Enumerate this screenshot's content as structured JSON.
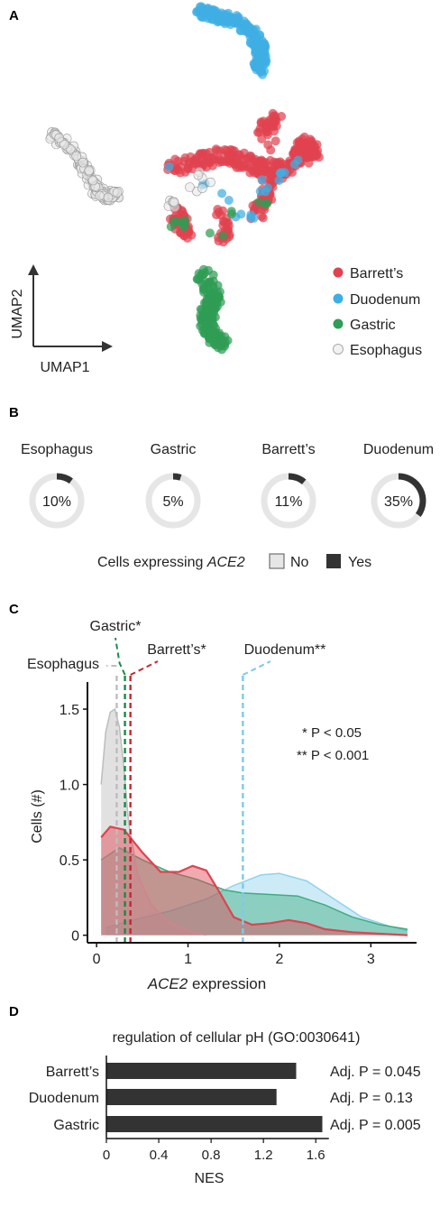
{
  "figure": {
    "panel_a": {
      "letter": "A",
      "x_axis": "UMAP1",
      "y_axis": "UMAP2",
      "legend": [
        {
          "label": "Barrett’s",
          "color": "#e0434f"
        },
        {
          "label": "Duodenum",
          "color": "#3eaee3"
        },
        {
          "label": "Gastric",
          "color": "#2f9d55"
        },
        {
          "label": "Esophagus",
          "color": "#e8e8e8"
        }
      ]
    },
    "panel_b": {
      "letter": "B",
      "caption_prefix": "Cells expressing ",
      "caption_gene": "ACE2",
      "legend_no": "No",
      "legend_yes": "Yes"
    },
    "panel_c": {
      "letter": "C",
      "p_note_1": "* P < 0.05",
      "p_note_2": "** P < 0.001"
    },
    "panel_d": {
      "letter": "D"
    }
  },
  "chart_data": [
    {
      "type": "scatter",
      "panel": "A",
      "xlabel": "UMAP1",
      "ylabel": "UMAP2",
      "series": [
        {
          "name": "Barrett’s",
          "color": "#e0434f"
        },
        {
          "name": "Duodenum",
          "color": "#3eaee3"
        },
        {
          "name": "Gastric",
          "color": "#2f9d55"
        },
        {
          "name": "Esophagus",
          "color": "#e8e8e8"
        }
      ]
    },
    {
      "type": "pie",
      "panel": "B",
      "items": [
        {
          "name": "Esophagus",
          "percent": 10,
          "label": "10%"
        },
        {
          "name": "Gastric",
          "percent": 5,
          "label": "5%"
        },
        {
          "name": "Barrett’s",
          "percent": 11,
          "label": "11%"
        },
        {
          "name": "Duodenum",
          "percent": 35,
          "label": "35%"
        }
      ],
      "colors": {
        "no": "#e6e6e6",
        "yes": "#333333"
      }
    },
    {
      "type": "area",
      "panel": "C",
      "xlabel": "ACE2 expression",
      "ylabel": "Cells (#)",
      "xlim": [
        -0.1,
        3.5
      ],
      "ylim": [
        -0.05,
        1.62
      ],
      "xticks": [
        0,
        1,
        2,
        3
      ],
      "yticks": [
        0,
        0.5,
        1.0,
        1.5
      ],
      "ytick_labels": [
        "0",
        "0.5",
        "1.0",
        "1.5"
      ],
      "series": [
        {
          "name": "Duodenum",
          "color": "#8ed3ee",
          "x": [
            0.1,
            0.4,
            0.8,
            1.2,
            1.5,
            1.8,
            2.0,
            2.3,
            2.6,
            2.9,
            3.2,
            3.4
          ],
          "y": [
            0.05,
            0.1,
            0.16,
            0.24,
            0.33,
            0.4,
            0.41,
            0.36,
            0.24,
            0.12,
            0.06,
            0.03
          ]
        },
        {
          "name": "Gastric",
          "color": "#3fae7e",
          "x": [
            0.05,
            0.25,
            0.5,
            0.8,
            1.1,
            1.4,
            1.6,
            1.9,
            2.2,
            2.5,
            2.8,
            3.1,
            3.4
          ],
          "y": [
            0.5,
            0.58,
            0.5,
            0.42,
            0.37,
            0.3,
            0.28,
            0.27,
            0.26,
            0.2,
            0.12,
            0.07,
            0.04
          ]
        },
        {
          "name": "Esophagus",
          "color": "#bdbdbd",
          "x": [
            0.05,
            0.1,
            0.15,
            0.2,
            0.25,
            0.3,
            0.35,
            0.45,
            0.6,
            0.8,
            1.0,
            1.2
          ],
          "y": [
            1.0,
            1.35,
            1.48,
            1.5,
            1.38,
            1.1,
            0.75,
            0.4,
            0.2,
            0.08,
            0.03,
            0.0
          ]
        },
        {
          "name": "Barrett’s",
          "color": "#e0434f",
          "x": [
            0.05,
            0.15,
            0.3,
            0.5,
            0.7,
            0.9,
            1.05,
            1.2,
            1.35,
            1.5,
            1.7,
            1.9,
            2.1,
            2.3,
            2.5,
            2.8,
            3.1,
            3.4
          ],
          "y": [
            0.65,
            0.72,
            0.7,
            0.55,
            0.42,
            0.42,
            0.46,
            0.43,
            0.28,
            0.12,
            0.07,
            0.08,
            0.1,
            0.08,
            0.04,
            0.02,
            0.01,
            0.0
          ]
        }
      ],
      "medians": [
        {
          "name": "Esophagus",
          "label": "Esophagus",
          "x": 0.22,
          "color": "#bdbdbd"
        },
        {
          "name": "Gastric",
          "label": "Gastric*",
          "x": 0.31,
          "color": "#1a8a4a"
        },
        {
          "name": "Barrett’s",
          "label": "Barrett’s*",
          "x": 0.37,
          "color": "#c8262f"
        },
        {
          "name": "Duodenum",
          "label": "Duodenum**",
          "x": 1.6,
          "color": "#7ccbe7"
        }
      ]
    },
    {
      "type": "bar",
      "panel": "D",
      "orientation": "horizontal",
      "title": "regulation of cellular pH (GO:0030641)",
      "xlabel": "NES",
      "categories": [
        "Barrett’s",
        "Duodenum",
        "Gastric"
      ],
      "values": [
        1.45,
        1.3,
        1.65
      ],
      "annotations": [
        "Adj. P = 0.045",
        "Adj. P = 0.13",
        "Adj. P = 0.005"
      ],
      "xlim": [
        0,
        1.75
      ],
      "xticks": [
        0,
        0.4,
        0.8,
        1.2,
        1.6
      ],
      "xtick_labels": [
        "0",
        "0.4",
        "0.8",
        "1.2",
        "1.6"
      ],
      "color": "#333333"
    }
  ]
}
